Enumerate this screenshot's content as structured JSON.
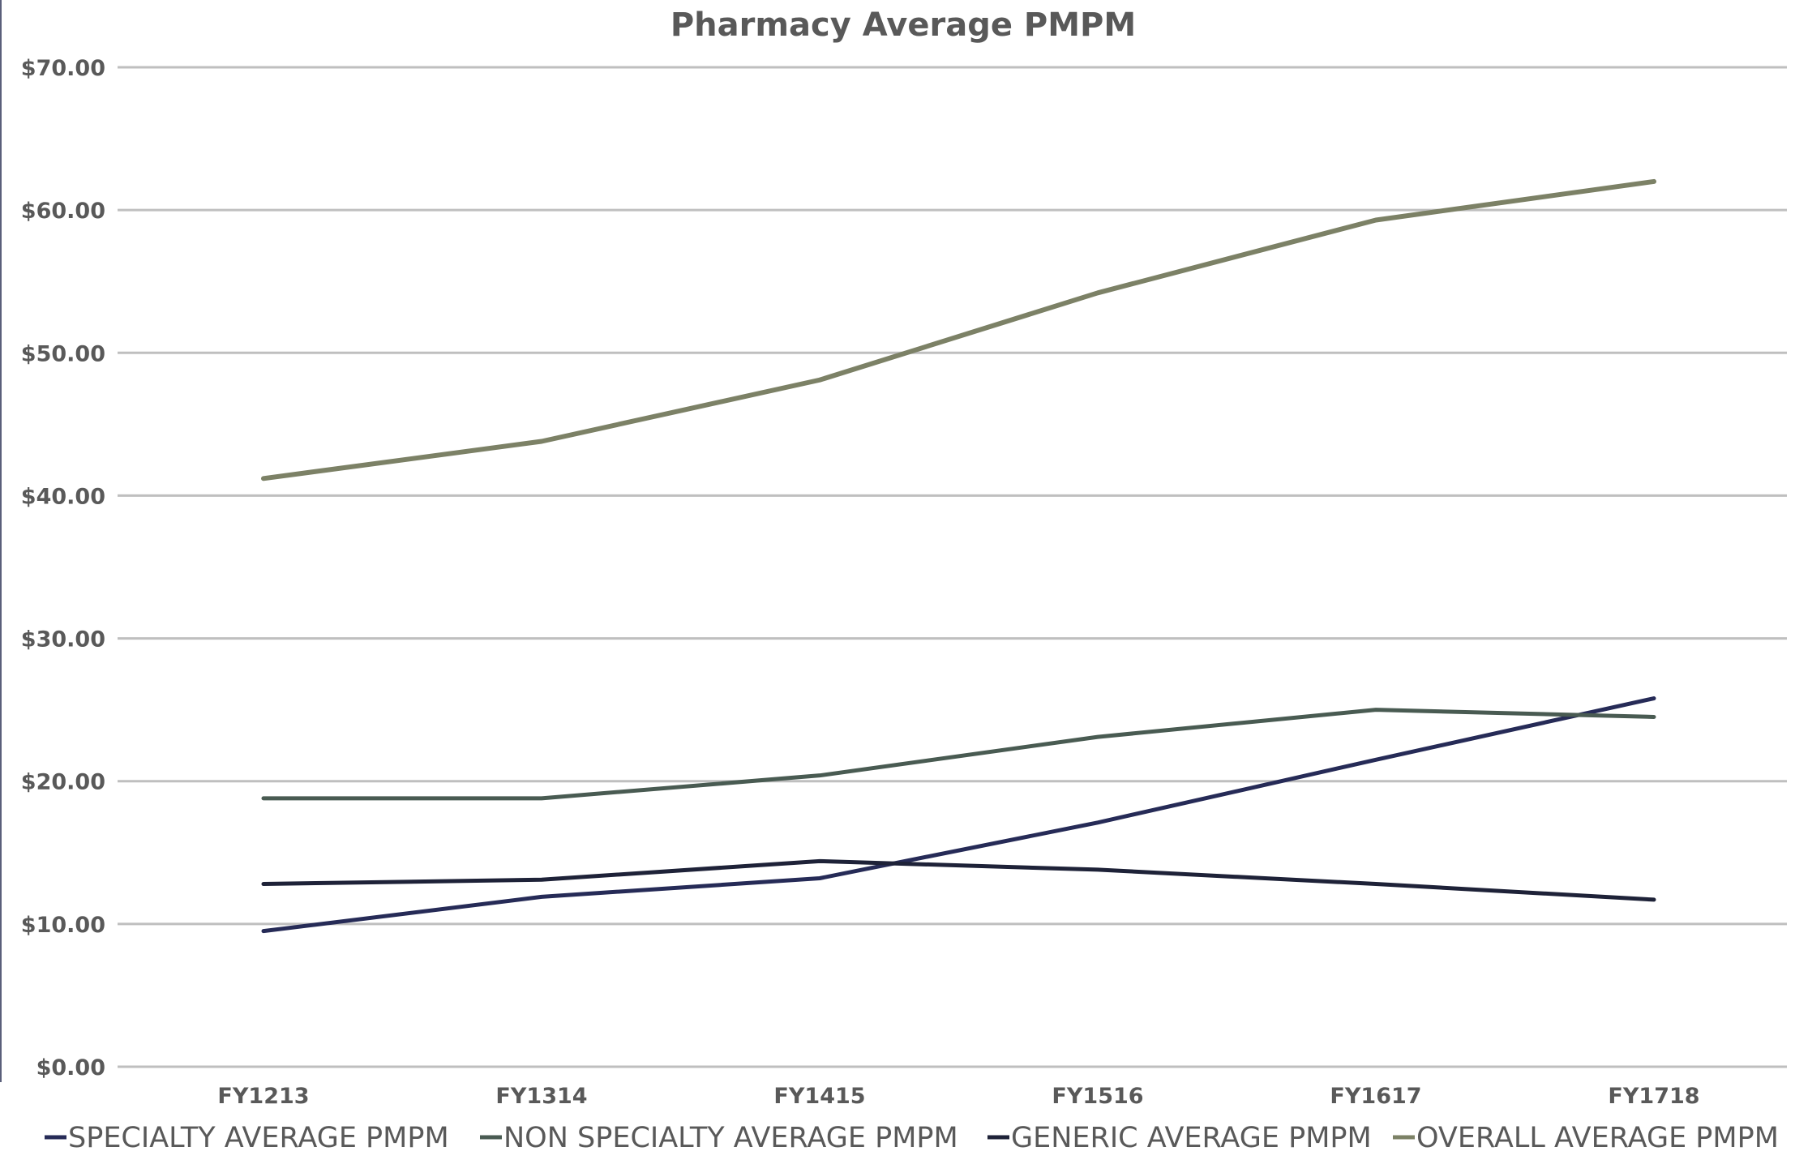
{
  "chart_data": {
    "type": "line",
    "title": "Pharmacy Average PMPM",
    "xlabel": "",
    "ylabel": "",
    "categories": [
      "FY1213",
      "FY1314",
      "FY1415",
      "FY1516",
      "FY1617",
      "FY1718"
    ],
    "ylim": [
      0,
      70
    ],
    "yticks": [
      0,
      10,
      20,
      30,
      40,
      50,
      60,
      70
    ],
    "ytick_labels": [
      "$0.00",
      "$10.00",
      "$20.00",
      "$30.00",
      "$40.00",
      "$50.00",
      "$60.00",
      "$70.00"
    ],
    "grid": true,
    "legend_position": "bottom",
    "series": [
      {
        "name": "SPECIALTY AVERAGE PMPM",
        "color": "#262b57",
        "values": [
          9.5,
          11.9,
          13.2,
          17.1,
          21.5,
          25.8
        ]
      },
      {
        "name": "NON SPECIALTY AVERAGE PMPM",
        "color": "#495b52",
        "values": [
          18.8,
          18.8,
          20.4,
          23.1,
          25.0,
          24.5
        ]
      },
      {
        "name": "GENERIC AVERAGE PMPM",
        "color": "#1e2238",
        "values": [
          12.8,
          13.1,
          14.4,
          13.8,
          12.8,
          11.7
        ]
      },
      {
        "name": "OVERALL AVERAGE PMPM",
        "color": "#7c8166",
        "values": [
          41.2,
          43.8,
          48.1,
          54.2,
          59.3,
          62.0
        ]
      }
    ]
  }
}
